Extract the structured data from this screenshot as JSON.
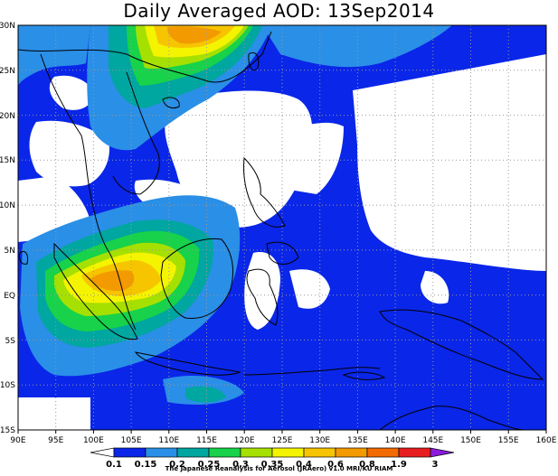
{
  "title": "Daily Averaged AOD: 13Sep2014",
  "lon_ticks": [
    "90E",
    "95E",
    "100E",
    "105E",
    "110E",
    "115E",
    "120E",
    "125E",
    "130E",
    "135E",
    "140E",
    "145E",
    "150E",
    "155E",
    "160E"
  ],
  "lat_ticks": [
    "30N",
    "25N",
    "20N",
    "15N",
    "10N",
    "5N",
    "EQ",
    "5S",
    "10S",
    "15S"
  ],
  "colorbar": {
    "labels": [
      "0.1",
      "0.15",
      "0.2",
      "0.25",
      "0.3",
      "0.35",
      "0.4",
      "0.6",
      "0.8",
      "1.9",
      "3"
    ],
    "colors": [
      "#ffffff",
      "#0a26e8",
      "#2a8fe6",
      "#00a6a0",
      "#17d24a",
      "#a6e000",
      "#f4f400",
      "#f7c400",
      "#f39a00",
      "#f26a00",
      "#e81e1e",
      "#8b1adf"
    ]
  },
  "credit": "The Japanese Reanalysis for Aerosol (JRAero) v1.0 MRI/KU RIAM",
  "map": {
    "region": "Southeast Asia / Maritime Continent",
    "lon_range": [
      90,
      160
    ],
    "lat_range": [
      -15,
      30
    ],
    "grid": "dotted, every 5 degrees",
    "palette": {
      "bg": "#ffffff",
      "l1": "#0a26e8",
      "l2": "#2a8fe6",
      "l3": "#00a6a0",
      "l4": "#17d24a",
      "l5": "#a6e000",
      "l6": "#f4f400",
      "l7": "#f7c400",
      "l8": "#f39a00",
      "l9": "#f26a00"
    }
  }
}
